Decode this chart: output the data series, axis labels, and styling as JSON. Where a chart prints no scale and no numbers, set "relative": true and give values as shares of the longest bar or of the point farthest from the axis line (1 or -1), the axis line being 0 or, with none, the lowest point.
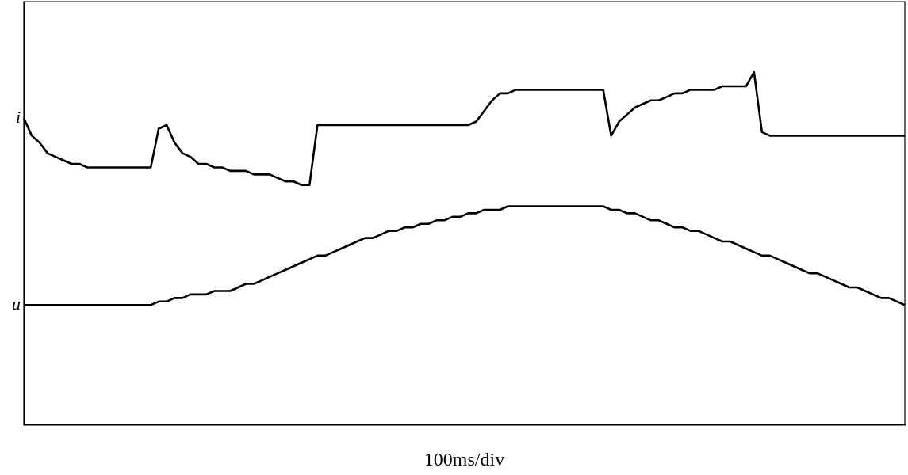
{
  "chart_data": {
    "type": "line",
    "relative": true,
    "xlabel": "100ms/div",
    "grid": false,
    "legend": false,
    "marker": "none",
    "line_style": "solid",
    "categories": [
      null,
      null,
      null,
      null,
      null,
      null,
      null,
      null,
      null,
      null,
      null,
      null,
      null,
      null,
      null,
      null,
      null,
      null,
      null,
      null,
      null,
      null,
      null,
      null,
      null,
      null,
      null,
      null,
      null,
      null,
      null,
      null,
      null,
      null,
      null,
      null,
      null,
      null,
      null,
      null,
      null,
      null,
      null,
      null,
      null,
      null,
      null,
      null,
      null,
      null,
      null,
      null,
      null,
      null,
      null,
      null,
      null,
      null,
      null,
      null,
      null,
      null,
      null,
      null,
      null,
      null,
      null,
      null,
      null,
      null,
      null,
      null,
      null,
      null,
      null,
      null,
      null,
      null,
      null,
      null,
      null,
      null,
      null,
      null,
      null,
      null,
      null,
      null,
      null,
      null,
      null,
      null,
      null,
      null,
      null,
      null,
      null,
      null,
      null,
      null,
      null,
      null,
      null,
      null,
      null,
      null,
      null,
      null,
      null,
      null,
      null,
      null
    ],
    "series": [
      {
        "name": "i",
        "color": "#000000",
        "values": [
          0.87,
          0.82,
          0.8,
          0.77,
          0.76,
          0.75,
          0.74,
          0.74,
          0.73,
          0.73,
          0.73,
          0.73,
          0.73,
          0.73,
          0.73,
          0.73,
          0.73,
          0.84,
          0.85,
          0.8,
          0.77,
          0.76,
          0.74,
          0.74,
          0.73,
          0.73,
          0.72,
          0.72,
          0.72,
          0.71,
          0.71,
          0.71,
          0.7,
          0.69,
          0.69,
          0.68,
          0.68,
          0.85,
          0.85,
          0.85,
          0.85,
          0.85,
          0.85,
          0.85,
          0.85,
          0.85,
          0.85,
          0.85,
          0.85,
          0.85,
          0.85,
          0.85,
          0.85,
          0.85,
          0.85,
          0.85,
          0.85,
          0.86,
          0.89,
          0.92,
          0.94,
          0.94,
          0.95,
          0.95,
          0.95,
          0.95,
          0.95,
          0.95,
          0.95,
          0.95,
          0.95,
          0.95,
          0.95,
          0.95,
          0.82,
          0.86,
          0.88,
          0.9,
          0.91,
          0.92,
          0.92,
          0.93,
          0.94,
          0.94,
          0.95,
          0.95,
          0.95,
          0.95,
          0.96,
          0.96,
          0.96,
          0.96,
          1,
          0.83,
          0.82,
          0.82,
          0.82,
          0.82,
          0.82,
          0.82,
          0.82,
          0.82,
          0.82,
          0.82,
          0.82,
          0.82,
          0.82,
          0.82,
          0.82,
          0.82,
          0.82,
          0.82
        ]
      },
      {
        "name": "u",
        "color": "#000000",
        "values": [
          0.34,
          0.34,
          0.34,
          0.34,
          0.34,
          0.34,
          0.34,
          0.34,
          0.34,
          0.34,
          0.34,
          0.34,
          0.34,
          0.34,
          0.34,
          0.34,
          0.34,
          0.35,
          0.35,
          0.36,
          0.36,
          0.37,
          0.37,
          0.37,
          0.38,
          0.38,
          0.38,
          0.39,
          0.4,
          0.4,
          0.41,
          0.42,
          0.43,
          0.44,
          0.45,
          0.46,
          0.47,
          0.48,
          0.48,
          0.49,
          0.5,
          0.51,
          0.52,
          0.53,
          0.53,
          0.54,
          0.55,
          0.55,
          0.56,
          0.56,
          0.57,
          0.57,
          0.58,
          0.58,
          0.59,
          0.59,
          0.6,
          0.6,
          0.61,
          0.61,
          0.61,
          0.62,
          0.62,
          0.62,
          0.62,
          0.62,
          0.62,
          0.62,
          0.62,
          0.62,
          0.62,
          0.62,
          0.62,
          0.62,
          0.61,
          0.61,
          0.6,
          0.6,
          0.59,
          0.58,
          0.58,
          0.57,
          0.56,
          0.56,
          0.55,
          0.55,
          0.54,
          0.53,
          0.52,
          0.52,
          0.51,
          0.5,
          0.49,
          0.48,
          0.48,
          0.47,
          0.46,
          0.45,
          0.44,
          0.43,
          0.43,
          0.42,
          0.41,
          0.4,
          0.39,
          0.39,
          0.38,
          0.37,
          0.36,
          0.36,
          0.35,
          0.34
        ]
      }
    ]
  }
}
